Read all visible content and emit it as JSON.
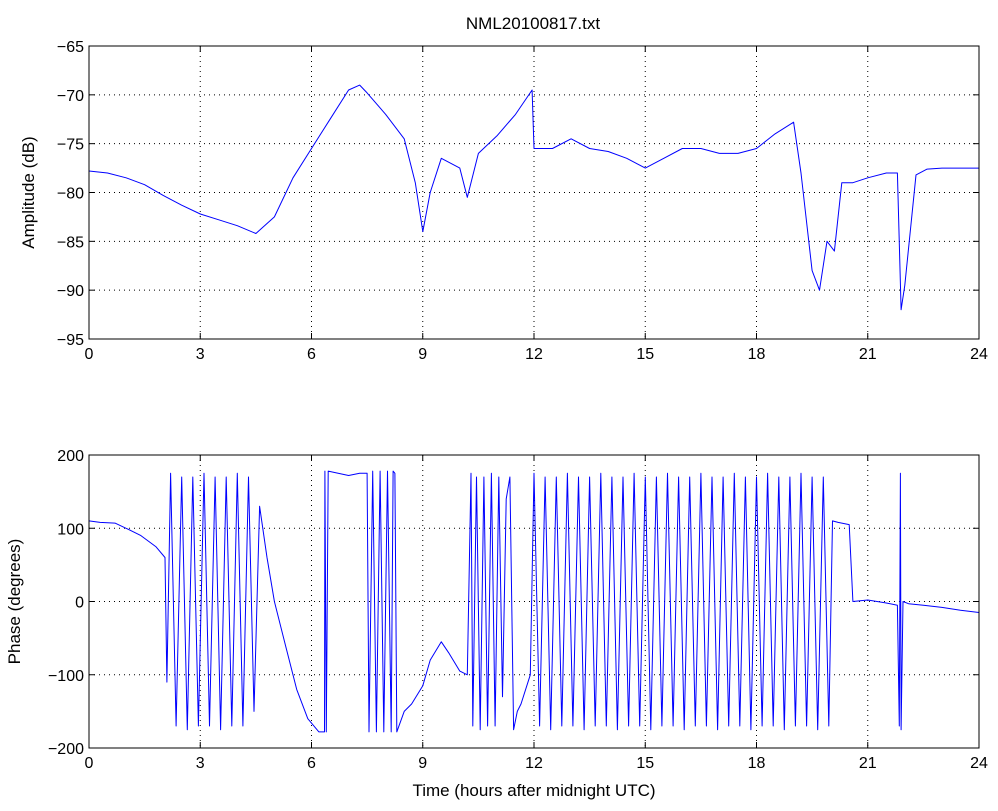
{
  "figure": {
    "title": "NML20100817.txt",
    "line_color": "#0000ff",
    "background": "#ffffff"
  },
  "chart_data": [
    {
      "type": "line",
      "title": "NML20100817.txt",
      "xlabel": "",
      "ylabel": "Amplitude (dB)",
      "xlim": [
        0,
        24
      ],
      "ylim": [
        -95,
        -65
      ],
      "xticks": [
        0,
        3,
        6,
        9,
        12,
        15,
        18,
        21,
        24
      ],
      "yticks": [
        -95,
        -90,
        -85,
        -80,
        -75,
        -70,
        -65
      ],
      "xtick_labels": [
        "0",
        "3",
        "6",
        "9",
        "12",
        "15",
        "18",
        "21",
        "24"
      ],
      "ytick_labels": [
        "−95",
        "−90",
        "−85",
        "−80",
        "−75",
        "−70",
        "−65"
      ],
      "grid": true,
      "grid_style": "dotted",
      "series": [
        {
          "color": "#0000ff",
          "x": [
            0,
            0.5,
            1,
            1.5,
            2,
            2.5,
            3,
            3.5,
            4,
            4.5,
            5,
            5.5,
            6,
            6.5,
            7,
            7.3,
            7.5,
            8,
            8.5,
            8.8,
            9,
            9.2,
            9.5,
            10,
            10.2,
            10.5,
            11,
            11.5,
            11.95,
            12,
            12.5,
            13,
            13.5,
            14,
            14.5,
            15,
            15.5,
            16,
            16.5,
            17,
            17.5,
            18,
            18.5,
            19,
            19.2,
            19.5,
            19.7,
            19.9,
            20.1,
            20.3,
            20.6,
            21,
            21.5,
            21.8,
            21.9,
            22,
            22.3,
            22.6,
            23,
            23.5,
            24
          ],
          "y": [
            -77.8,
            -78,
            -78.5,
            -79.2,
            -80.3,
            -81.3,
            -82.2,
            -82.8,
            -83.4,
            -84.2,
            -82.5,
            -78.5,
            -75.5,
            -72.5,
            -69.5,
            -69,
            -69.8,
            -72,
            -74.5,
            -79,
            -84,
            -80,
            -76.5,
            -77.5,
            -80.5,
            -76,
            -74.2,
            -72,
            -69.5,
            -75.5,
            -75.5,
            -74.5,
            -75.5,
            -75.8,
            -76.5,
            -77.5,
            -76.5,
            -75.5,
            -75.5,
            -76,
            -76,
            -75.5,
            -74,
            -72.8,
            -78,
            -88,
            -90,
            -85,
            -86,
            -79,
            -79,
            -78.5,
            -78,
            -78,
            -92,
            -89.5,
            -78.2,
            -77.6,
            -77.5,
            -77.5,
            -77.5
          ]
        }
      ]
    },
    {
      "type": "line",
      "title": "",
      "xlabel": "Time (hours after midnight UTC)",
      "ylabel": "Phase (degrees)",
      "xlim": [
        0,
        24
      ],
      "ylim": [
        -200,
        200
      ],
      "xticks": [
        0,
        3,
        6,
        9,
        12,
        15,
        18,
        21,
        24
      ],
      "yticks": [
        -200,
        -100,
        0,
        100,
        200
      ],
      "xtick_labels": [
        "0",
        "3",
        "6",
        "9",
        "12",
        "15",
        "18",
        "21",
        "24"
      ],
      "ytick_labels": [
        "−200",
        "−100",
        "0",
        "100",
        "200"
      ],
      "grid": true,
      "grid_style": "dotted",
      "series": [
        {
          "color": "#0000ff",
          "x": [
            0,
            0.3,
            0.7,
            1,
            1.4,
            1.8,
            2.05,
            2.1,
            2.2,
            2.35,
            2.5,
            2.65,
            2.8,
            2.95,
            3.1,
            3.25,
            3.4,
            3.55,
            3.7,
            3.85,
            4,
            4.15,
            4.3,
            4.45,
            4.6,
            4.8,
            5,
            5.3,
            5.6,
            5.9,
            6.2,
            6.35,
            6.36,
            6.4,
            6.45,
            7,
            7.3,
            7.5,
            7.55,
            7.65,
            7.75,
            7.85,
            7.95,
            8.05,
            8.15,
            8.2,
            8.25,
            8.3,
            8.5,
            8.7,
            9,
            9.2,
            9.5,
            9.7,
            10,
            10.2,
            10.3,
            10.35,
            10.45,
            10.55,
            10.65,
            10.75,
            10.85,
            10.95,
            11.05,
            11.15,
            11.25,
            11.35,
            11.45,
            11.55,
            11.65,
            11.9,
            12,
            12.15,
            12.3,
            12.45,
            12.6,
            12.75,
            12.9,
            13.05,
            13.2,
            13.35,
            13.5,
            13.65,
            13.8,
            13.95,
            14.1,
            14.25,
            14.4,
            14.55,
            14.7,
            14.85,
            15,
            15.15,
            15.3,
            15.45,
            15.6,
            15.75,
            15.9,
            16.05,
            16.2,
            16.35,
            16.5,
            16.65,
            16.8,
            16.95,
            17.1,
            17.25,
            17.4,
            17.55,
            17.7,
            17.85,
            18,
            18.15,
            18.3,
            18.45,
            18.6,
            18.75,
            18.9,
            19.05,
            19.2,
            19.35,
            19.5,
            19.65,
            19.8,
            19.95,
            20.05,
            20.2,
            20.5,
            20.6,
            21,
            21.5,
            21.8,
            21.85,
            21.88,
            21.9,
            21.95,
            22.1,
            22.5,
            23,
            23.5,
            24
          ],
          "y": [
            110,
            108,
            107,
            100,
            90,
            75,
            60,
            -110,
            175,
            -170,
            170,
            -175,
            170,
            -170,
            175,
            -170,
            170,
            -175,
            170,
            -170,
            175,
            -170,
            170,
            -150,
            130,
            60,
            0,
            -60,
            -120,
            -160,
            -178,
            -178,
            178,
            -178,
            178,
            172,
            175,
            175,
            -178,
            178,
            -178,
            178,
            -178,
            178,
            -178,
            178,
            175,
            -178,
            -150,
            -140,
            -115,
            -80,
            -55,
            -70,
            -95,
            -100,
            175,
            -170,
            170,
            -175,
            170,
            -170,
            175,
            -170,
            170,
            -130,
            140,
            170,
            -175,
            -150,
            -140,
            -100,
            175,
            -170,
            170,
            -175,
            170,
            -170,
            175,
            -170,
            170,
            -175,
            170,
            -170,
            175,
            -170,
            170,
            -175,
            170,
            -170,
            175,
            -170,
            170,
            -175,
            170,
            -170,
            175,
            -170,
            170,
            -175,
            170,
            -170,
            175,
            -170,
            170,
            -175,
            170,
            -170,
            175,
            -170,
            170,
            -175,
            170,
            -170,
            175,
            -170,
            170,
            -175,
            170,
            -170,
            175,
            -170,
            170,
            -175,
            170,
            -170,
            110,
            108,
            105,
            0,
            2,
            -2,
            -5,
            -170,
            175,
            -175,
            0,
            -3,
            -5,
            -8,
            -12,
            -15
          ]
        }
      ]
    }
  ]
}
